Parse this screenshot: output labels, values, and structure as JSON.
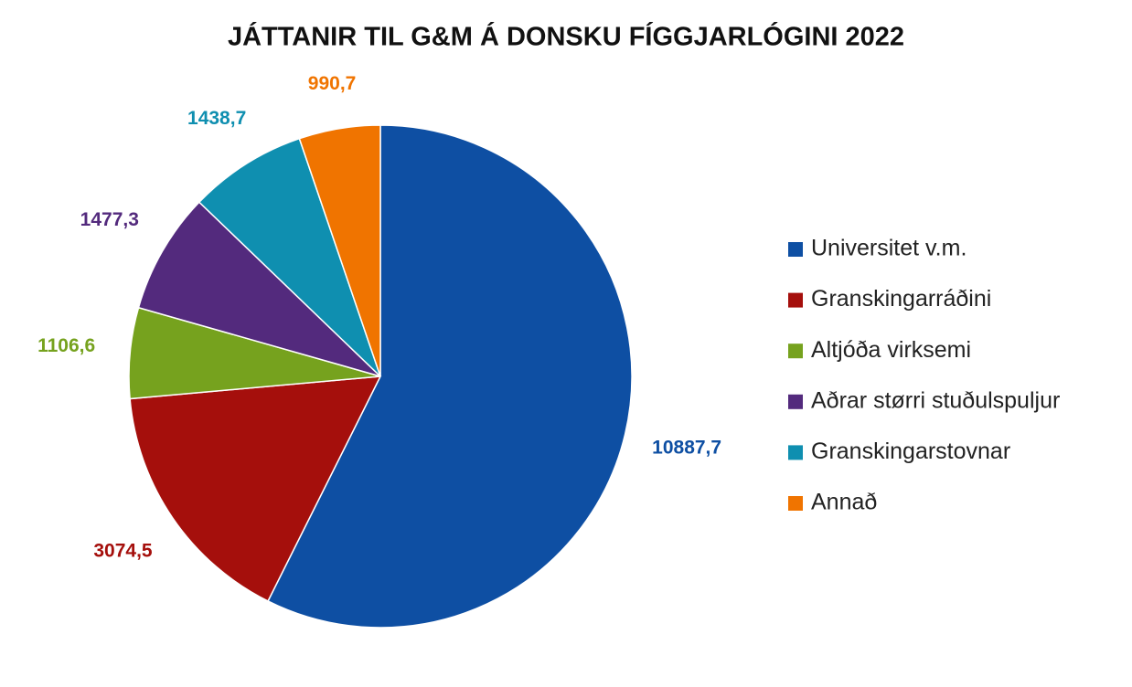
{
  "chart_data": {
    "type": "pie",
    "title": "JÁTTANIR TIL G&M Á DONSKU FÍGGJARLÓGINI 2022",
    "categories": [
      "Universitet v.m.",
      "Granskingarráðini",
      "Altjóða virksemi",
      "Aðrar størri stuðulspuljur",
      "Granskingarstovnar",
      "Annað"
    ],
    "values": [
      10887.7,
      3074.5,
      1106.6,
      1477.3,
      1438.7,
      990.7
    ],
    "value_labels": [
      "10887,7",
      "3074,5",
      "1106,6",
      "1477,3",
      "1438,7",
      "990,7"
    ],
    "colors": [
      "#0e4fa3",
      "#a50f0c",
      "#76a21e",
      "#532a7d",
      "#0f8fb0",
      "#f07400"
    ],
    "legend": "right"
  }
}
